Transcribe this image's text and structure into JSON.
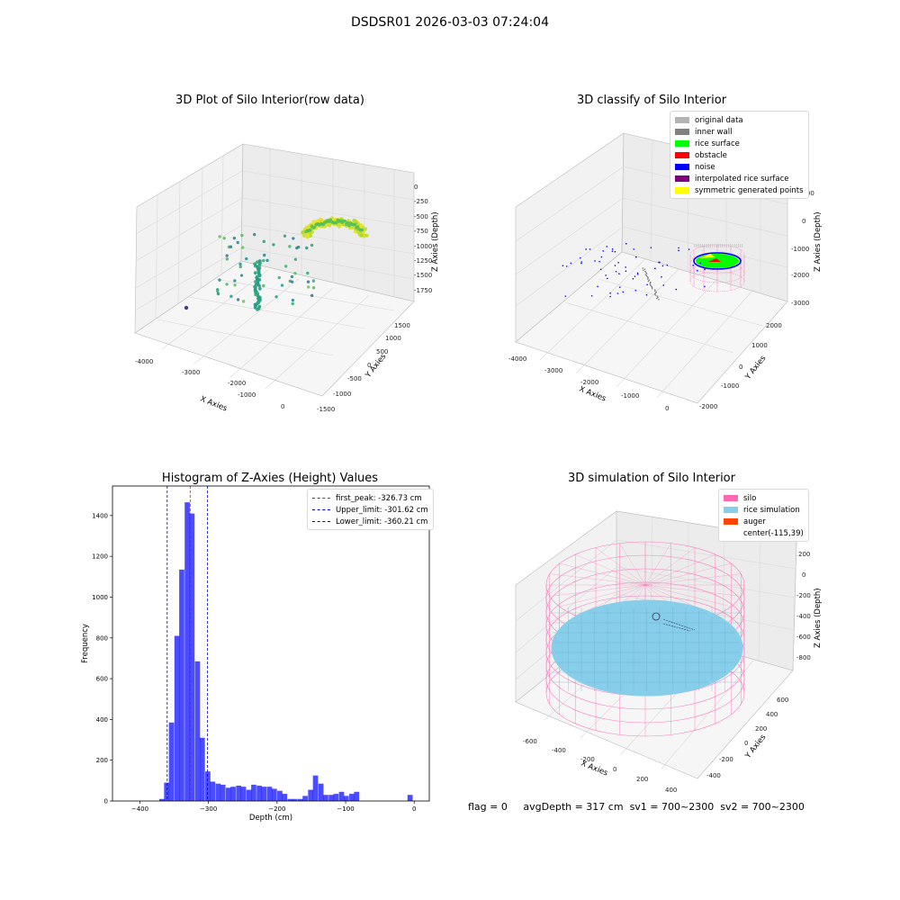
{
  "suptitle": "DSDSR01 2026-03-03 07:24:04",
  "footer": {
    "flag": "flag = 0",
    "avgDepth": "avgDepth = 317 cm",
    "sv1": "sv1 = 700~2300",
    "sv2": "sv2 = 700~2300"
  },
  "colors": {
    "hist_bar": "#0000ff",
    "peak_line": "#ff0000",
    "limit_line": "#0000cc",
    "grid": "#d8d8d8",
    "pane": "#f2f2f2",
    "silo_wire": "#ff69b4",
    "rice_sim": "#87ceeb"
  },
  "panels": {
    "raw": {
      "title": "3D Plot of Silo Interior(row data)",
      "xlabel": "X Axies",
      "ylabel": "Y Axies",
      "zlabel": "Z Axies (Depth)",
      "xticks": [
        "-4000",
        "-3000",
        "-2000",
        "-1000",
        "0"
      ],
      "yticks": [
        "-1500",
        "-1000",
        "-500",
        "0",
        "500",
        "1000",
        "1500"
      ],
      "zticks": [
        "0",
        "-250",
        "-500",
        "-750",
        "-1000",
        "-1250",
        "-1500",
        "-1750"
      ]
    },
    "classify": {
      "title": "3D classify of Silo Interior",
      "xlabel": "X Axies",
      "ylabel": "Y Axies",
      "zlabel": "Z Axies (Depth)",
      "xticks": [
        "-4000",
        "-3000",
        "-2000",
        "-1000",
        "0"
      ],
      "yticks": [
        "-2000",
        "-1000",
        "0",
        "1000",
        "2000"
      ],
      "zticks": [
        "1000",
        "0",
        "-1000",
        "-2000",
        "-3000"
      ],
      "legend": [
        {
          "label": "original data",
          "color": "#b4b4b4"
        },
        {
          "label": "inner wall",
          "color": "#808080"
        },
        {
          "label": "rice surface",
          "color": "#00ff00"
        },
        {
          "label": "obstacle",
          "color": "#ff0000"
        },
        {
          "label": "noise",
          "color": "#0000ff"
        },
        {
          "label": "interpolated rice surface",
          "color": "#800080"
        },
        {
          "label": "symmetric generated points",
          "color": "#ffff00"
        }
      ]
    },
    "simulation": {
      "title": "3D simulation of Silo Interior",
      "xlabel": "X Axies",
      "ylabel": "Y Axies",
      "zlabel": "Z Axies (Depth)",
      "xticks": [
        "-600",
        "-400",
        "-200",
        "0",
        "200",
        "400"
      ],
      "yticks": [
        "-400",
        "-200",
        "0",
        "200",
        "400",
        "600"
      ],
      "zticks": [
        "200",
        "0",
        "-200",
        "-400",
        "-600",
        "-800"
      ],
      "legend": [
        {
          "label": "silo",
          "color": "#ff69b4"
        },
        {
          "label": "rice simulation",
          "color": "#87ceeb"
        },
        {
          "label": "auger",
          "color": "#ff4500"
        },
        {
          "label": "center(-115,39)",
          "color": ""
        }
      ]
    }
  },
  "chart_data": [
    {
      "type": "bar",
      "title": "Histogram of Z-Axies (Height) Values",
      "xlabel": "Depth (cm)",
      "ylabel": "Frequency",
      "xlim": [
        -440,
        22
      ],
      "ylim": [
        0,
        1545
      ],
      "xticks": [
        -400,
        -300,
        -200,
        -100,
        0
      ],
      "yticks": [
        0,
        200,
        400,
        600,
        800,
        1000,
        1200,
        1400
      ],
      "bin_width": 7.5,
      "bins": [
        {
          "x": -368,
          "y": 10
        },
        {
          "x": -361,
          "y": 90
        },
        {
          "x": -354,
          "y": 385
        },
        {
          "x": -346,
          "y": 810
        },
        {
          "x": -339,
          "y": 1135
        },
        {
          "x": -331,
          "y": 1465
        },
        {
          "x": -324,
          "y": 1410
        },
        {
          "x": -316,
          "y": 685
        },
        {
          "x": -309,
          "y": 310
        },
        {
          "x": -301,
          "y": 145
        },
        {
          "x": -294,
          "y": 95
        },
        {
          "x": -286,
          "y": 85
        },
        {
          "x": -279,
          "y": 80
        },
        {
          "x": -271,
          "y": 65
        },
        {
          "x": -264,
          "y": 70
        },
        {
          "x": -256,
          "y": 75
        },
        {
          "x": -249,
          "y": 70
        },
        {
          "x": -241,
          "y": 55
        },
        {
          "x": -234,
          "y": 80
        },
        {
          "x": -226,
          "y": 75
        },
        {
          "x": -219,
          "y": 70
        },
        {
          "x": -211,
          "y": 70
        },
        {
          "x": -204,
          "y": 60
        },
        {
          "x": -196,
          "y": 50
        },
        {
          "x": -189,
          "y": 35
        },
        {
          "x": -181,
          "y": 10
        },
        {
          "x": -174,
          "y": 10
        },
        {
          "x": -166,
          "y": 10
        },
        {
          "x": -159,
          "y": 25
        },
        {
          "x": -151,
          "y": 55
        },
        {
          "x": -144,
          "y": 125
        },
        {
          "x": -136,
          "y": 85
        },
        {
          "x": -129,
          "y": 30
        },
        {
          "x": -121,
          "y": 30
        },
        {
          "x": -114,
          "y": 35
        },
        {
          "x": -106,
          "y": 45
        },
        {
          "x": -99,
          "y": 25
        },
        {
          "x": -91,
          "y": 35
        },
        {
          "x": -84,
          "y": 45
        },
        {
          "x": -6,
          "y": 30
        }
      ],
      "vlines": [
        {
          "label": "first_peak: -326.73 cm",
          "x": -326.73,
          "color": "#ff0000"
        },
        {
          "label": "Upper_limit: -301.62 cm",
          "x": -301.62,
          "color": "#0000cc"
        },
        {
          "label": "Lower_limit: -360.21 cm",
          "x": -360.21,
          "color": "#0000cc"
        }
      ]
    }
  ]
}
